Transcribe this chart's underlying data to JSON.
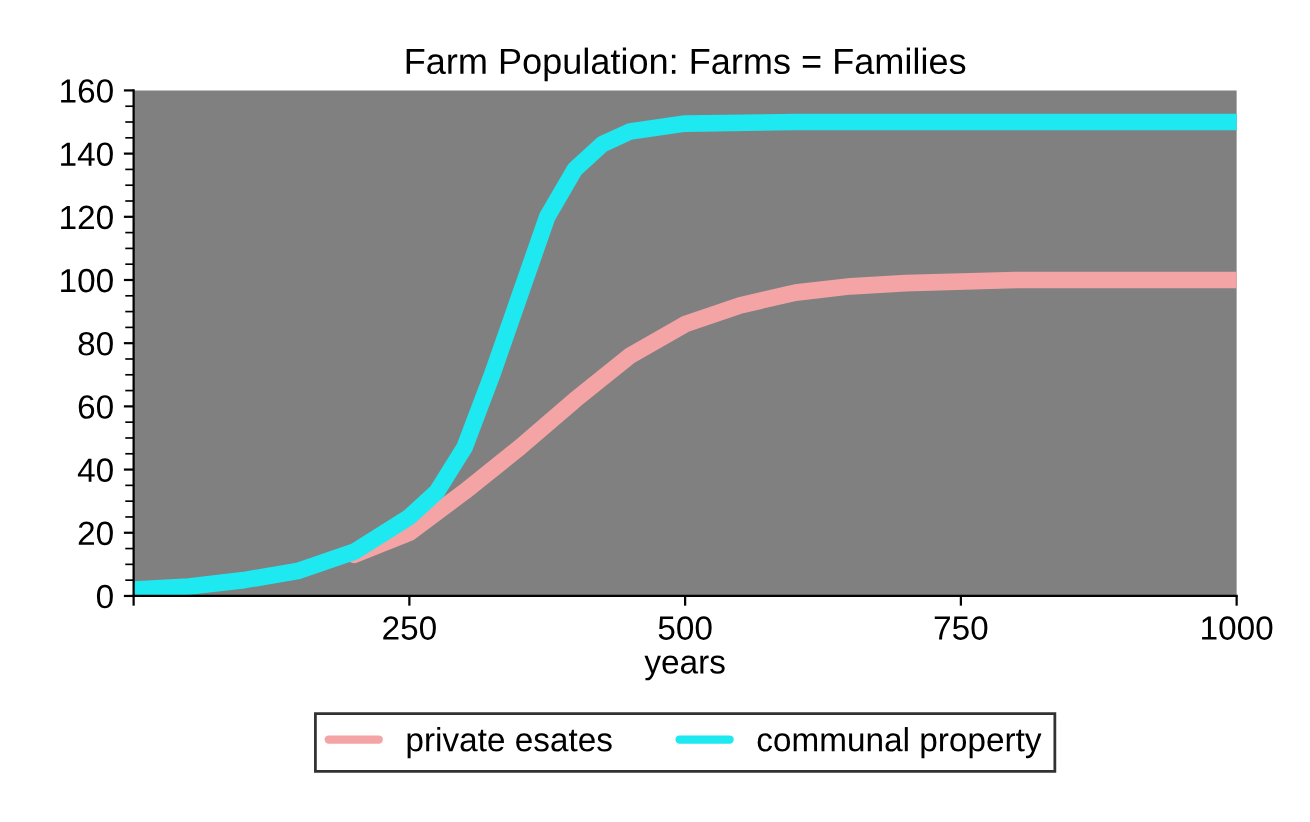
{
  "chart_data": {
    "type": "line",
    "title": "Farm Population: Farms = Families",
    "xlabel": "years",
    "xlim": [
      0,
      1000
    ],
    "xticks": [
      {
        "value": 0,
        "label": null
      },
      250,
      500,
      750,
      1000
    ],
    "ylim": [
      0,
      160
    ],
    "yticks": [
      0,
      20,
      40,
      60,
      80,
      100,
      120,
      140,
      160
    ],
    "grid": false,
    "legend": "bottom",
    "marker": "none",
    "line_style": "solid",
    "series": [
      {
        "name": "private esates",
        "color": "#f4a4a4",
        "x": [
          200,
          250,
          300,
          350,
          400,
          450,
          500,
          550,
          600,
          650,
          700,
          800,
          1000
        ],
        "values": [
          13,
          20,
          33,
          47,
          62,
          76,
          86,
          92,
          96,
          98,
          99,
          100,
          100
        ]
      },
      {
        "name": "communal property",
        "color": "#1ee8f0",
        "x": [
          0,
          50,
          100,
          150,
          200,
          250,
          275,
          300,
          325,
          350,
          375,
          400,
          425,
          450,
          500,
          600,
          1000
        ],
        "values": [
          2,
          3,
          5,
          8,
          14,
          25,
          33,
          47,
          70,
          95,
          120,
          135,
          143,
          147,
          149.5,
          150,
          150
        ]
      }
    ]
  }
}
